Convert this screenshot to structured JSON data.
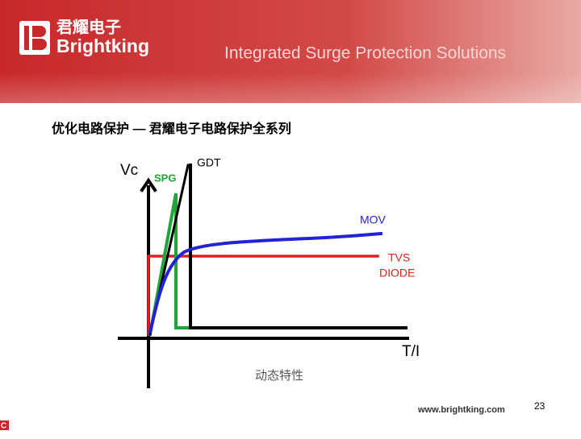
{
  "header": {
    "logo_cn": "君耀电子",
    "logo_en": "Brightking",
    "tagline": "Integrated Surge Protection Solutions"
  },
  "slide_title": "优化电路保护 — 君耀电子电路保护全系列",
  "diagram": {
    "y_axis_label": "Vc",
    "x_axis_label": "T/I",
    "caption": "动态特性",
    "curves": {
      "spg": "SPG",
      "gdt": "GDT",
      "mov": "MOV",
      "tvs_line1": "TVS",
      "tvs_line2": "DIODE"
    }
  },
  "footer": {
    "website": "www.brightking.com",
    "page_number": "23",
    "corner_icon": "C"
  }
}
